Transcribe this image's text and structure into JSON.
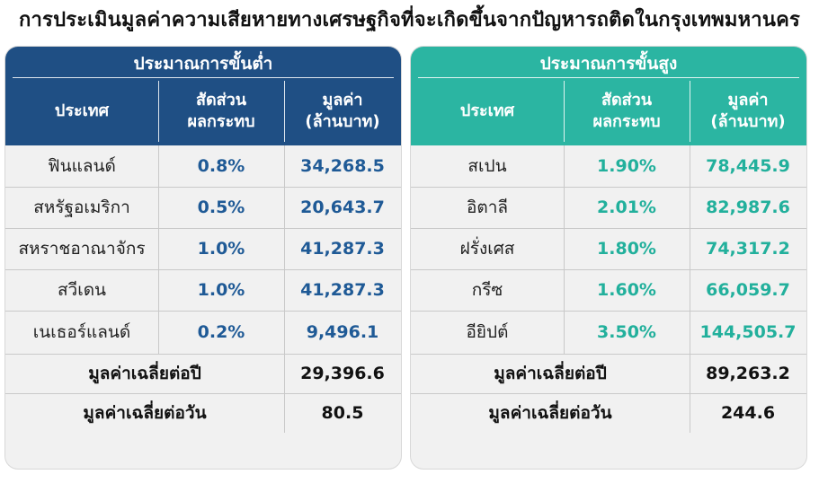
{
  "title": "การประเมินมูลค่าความเสียหายทางเศรษฐกิจที่จะเกิดขึ้นจากปัญหารถติดในกรุงเทพมหานคร",
  "colors": {
    "low_header": "#1f4f84",
    "low_value": "#1f5a96",
    "high_header": "#2bb5a2",
    "high_value": "#22b09c"
  },
  "low": {
    "heading": "ประมาณการขั้นต่ำ",
    "col_country": "ประเทศ",
    "col_share_1": "สัดส่วน",
    "col_share_2": "ผลกระทบ",
    "col_value_1": "มูลค่า",
    "col_value_2": "(ล้านบาท)",
    "rows": [
      {
        "country": "ฟินแลนด์",
        "share": "0.8%",
        "value": "34,268.5"
      },
      {
        "country": "สหรัฐอเมริกา",
        "share": "0.5%",
        "value": "20,643.7"
      },
      {
        "country": "สหราชอาณาจักร",
        "share": "1.0%",
        "value": "41,287.3"
      },
      {
        "country": "สวีเดน",
        "share": "1.0%",
        "value": "41,287.3"
      },
      {
        "country": "เนเธอร์แลนด์",
        "share": "0.2%",
        "value": "9,496.1"
      }
    ],
    "avg_year_label": "มูลค่าเฉลี่ยต่อปี",
    "avg_year": "29,396.6",
    "avg_day_label": "มูลค่าเฉลี่ยต่อวัน",
    "avg_day": "80.5"
  },
  "high": {
    "heading": "ประมาณการขั้นสูง",
    "col_country": "ประเทศ",
    "col_share_1": "สัดส่วน",
    "col_share_2": "ผลกระทบ",
    "col_value_1": "มูลค่า",
    "col_value_2": "(ล้านบาท)",
    "rows": [
      {
        "country": "สเปน",
        "share": "1.90%",
        "value": "78,445.9"
      },
      {
        "country": "อิตาลี",
        "share": "2.01%",
        "value": "82,987.6"
      },
      {
        "country": "ฝรั่งเศส",
        "share": "1.80%",
        "value": "74,317.2"
      },
      {
        "country": "กรีซ",
        "share": "1.60%",
        "value": "66,059.7"
      },
      {
        "country": "อียิปต์",
        "share": "3.50%",
        "value": "144,505.7"
      }
    ],
    "avg_year_label": "มูลค่าเฉลี่ยต่อปี",
    "avg_year": "89,263.2",
    "avg_day_label": "มูลค่าเฉลี่ยต่อวัน",
    "avg_day": "244.6"
  }
}
